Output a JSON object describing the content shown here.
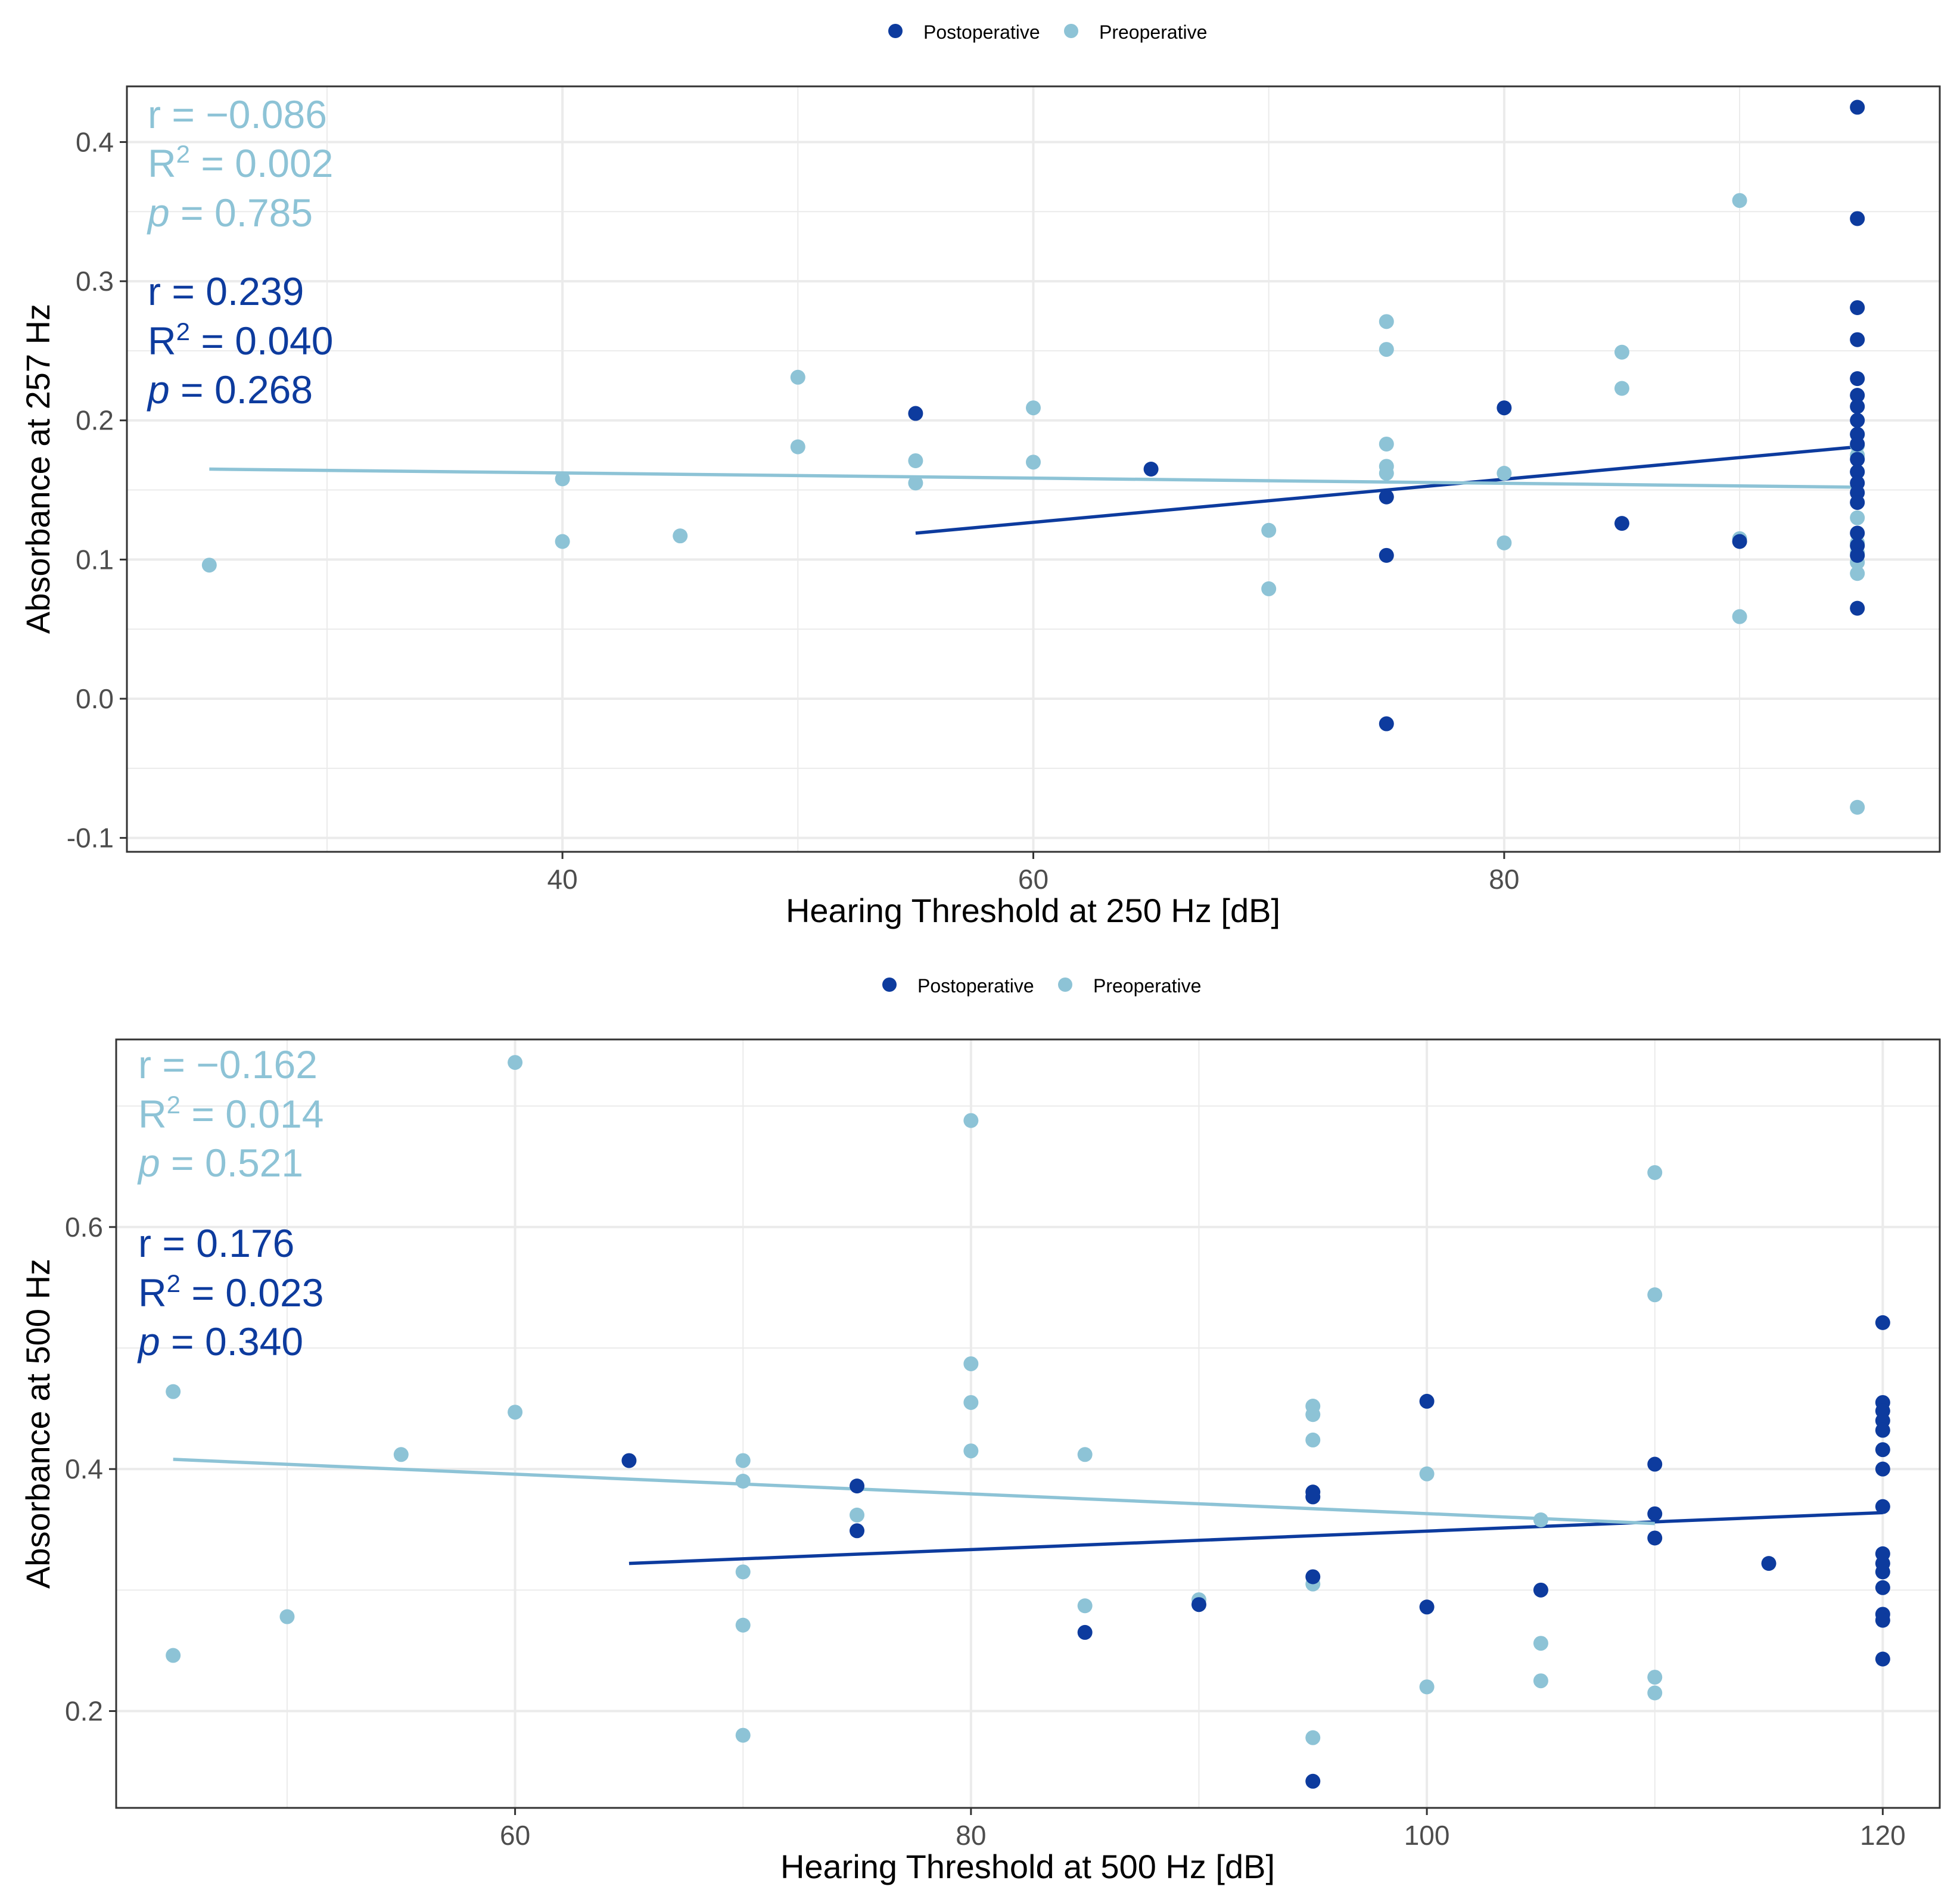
{
  "colors": {
    "postoperative": "#0d3b9e",
    "preoperative": "#8dc3d6",
    "grid": "#ebebeb",
    "panel_border": "#333333"
  },
  "chart_data": [
    {
      "type": "scatter",
      "legend": [
        "Postoperative",
        "Preoperative"
      ],
      "legend_position": "top",
      "xlabel": "Hearing Threshold at 250 Hz [dB]",
      "ylabel": "Absorbance at 257 Hz",
      "xlim": [
        21.5,
        98.5
      ],
      "ylim": [
        -0.11,
        0.44
      ],
      "xticks": [
        40,
        60,
        80
      ],
      "xtick_labels": [
        "40",
        "60",
        "80"
      ],
      "yticks": [
        -0.1,
        0,
        0.1,
        0.2,
        0.3,
        0.4
      ],
      "ytick_labels": [
        "-0.1",
        "0.0",
        "0.1",
        "0.2",
        "0.3",
        "0.4"
      ],
      "stats": {
        "preoperative": {
          "r_label": "r = ",
          "r": "−0.086",
          "r2_label": "R",
          "r2_sup": "2",
          "r2_eq": " = ",
          "r2": "0.002",
          "p_label": "p",
          "p_eq": " = ",
          "p": "0.785"
        },
        "postoperative": {
          "r_label": "r = ",
          "r": "0.239",
          "r2_label": "R",
          "r2_sup": "2",
          "r2_eq": " = ",
          "r2": "0.040",
          "p_label": "p",
          "p_eq": " = ",
          "p": "0.268"
        }
      },
      "series": [
        {
          "name": "Postoperative",
          "points": [
            [
              55,
              0.205
            ],
            [
              65,
              0.165
            ],
            [
              75,
              0.145
            ],
            [
              75,
              0.103
            ],
            [
              75,
              -0.018
            ],
            [
              80,
              0.209
            ],
            [
              85,
              0.126
            ],
            [
              90,
              0.113
            ],
            [
              95,
              0.425
            ],
            [
              95,
              0.345
            ],
            [
              95,
              0.281
            ],
            [
              95,
              0.258
            ],
            [
              95,
              0.23
            ],
            [
              95,
              0.218
            ],
            [
              95,
              0.21
            ],
            [
              95,
              0.2
            ],
            [
              95,
              0.19
            ],
            [
              95,
              0.183
            ],
            [
              95,
              0.172
            ],
            [
              95,
              0.163
            ],
            [
              95,
              0.155
            ],
            [
              95,
              0.148
            ],
            [
              95,
              0.141
            ],
            [
              95,
              0.119
            ],
            [
              95,
              0.11
            ],
            [
              95,
              0.103
            ],
            [
              95,
              0.065
            ]
          ],
          "fit": [
            [
              55,
              0.119
            ],
            [
              95,
              0.181
            ]
          ]
        },
        {
          "name": "Preoperative",
          "points": [
            [
              25,
              0.096
            ],
            [
              40,
              0.158
            ],
            [
              40,
              0.113
            ],
            [
              45,
              0.117
            ],
            [
              50,
              0.231
            ],
            [
              50,
              0.181
            ],
            [
              55,
              0.171
            ],
            [
              55,
              0.155
            ],
            [
              60,
              0.209
            ],
            [
              60,
              0.17
            ],
            [
              70,
              0.121
            ],
            [
              70,
              0.079
            ],
            [
              75,
              0.271
            ],
            [
              75,
              0.251
            ],
            [
              75,
              0.183
            ],
            [
              75,
              0.167
            ],
            [
              75,
              0.162
            ],
            [
              80,
              0.162
            ],
            [
              80,
              0.112
            ],
            [
              85,
              0.249
            ],
            [
              85,
              0.223
            ],
            [
              90,
              0.358
            ],
            [
              90,
              0.115
            ],
            [
              90,
              0.059
            ],
            [
              95,
              0.19
            ],
            [
              95,
              0.182
            ],
            [
              95,
              0.175
            ],
            [
              95,
              0.163
            ],
            [
              95,
              0.13
            ],
            [
              95,
              0.112
            ],
            [
              95,
              0.105
            ],
            [
              95,
              0.098
            ],
            [
              95,
              0.09
            ],
            [
              95,
              -0.078
            ]
          ],
          "fit": [
            [
              25,
              0.165
            ],
            [
              95,
              0.152
            ]
          ]
        }
      ]
    },
    {
      "type": "scatter",
      "legend": [
        "Postoperative",
        "Preoperative"
      ],
      "legend_position": "top",
      "xlabel": "Hearing Threshold at 500 Hz [dB]",
      "ylabel": "Absorbance at 500 Hz",
      "xlim": [
        42.5,
        122.5
      ],
      "ylim": [
        0.12,
        0.755
      ],
      "xticks": [
        60,
        80,
        100,
        120
      ],
      "xtick_labels": [
        "60",
        "80",
        "100",
        "120"
      ],
      "yticks": [
        0.2,
        0.4,
        0.6
      ],
      "ytick_labels": [
        "0.2",
        "0.4",
        "0.6"
      ],
      "stats": {
        "preoperative": {
          "r_label": "r = ",
          "r": "−0.162",
          "r2_label": "R",
          "r2_sup": "2",
          "r2_eq": " = ",
          "r2": "0.014",
          "p_label": "p",
          "p_eq": " = ",
          "p": "0.521"
        },
        "postoperative": {
          "r_label": "r = ",
          "r": "0.176",
          "r2_label": "R",
          "r2_sup": "2",
          "r2_eq": " = ",
          "r2": "0.023",
          "p_label": "p",
          "p_eq": " = ",
          "p": "0.340"
        }
      },
      "series": [
        {
          "name": "Postoperative",
          "points": [
            [
              65,
              0.407
            ],
            [
              75,
              0.386
            ],
            [
              75,
              0.349
            ],
            [
              85,
              0.265
            ],
            [
              90,
              0.288
            ],
            [
              95,
              0.381
            ],
            [
              95,
              0.377
            ],
            [
              95,
              0.311
            ],
            [
              100,
              0.456
            ],
            [
              100,
              0.286
            ],
            [
              105,
              0.3
            ],
            [
              110,
              0.404
            ],
            [
              110,
              0.363
            ],
            [
              110,
              0.343
            ],
            [
              115,
              0.322
            ],
            [
              120,
              0.521
            ],
            [
              120,
              0.455
            ],
            [
              120,
              0.448
            ],
            [
              120,
              0.44
            ],
            [
              120,
              0.432
            ],
            [
              120,
              0.416
            ],
            [
              120,
              0.4
            ],
            [
              120,
              0.369
            ],
            [
              120,
              0.33
            ],
            [
              120,
              0.322
            ],
            [
              120,
              0.315
            ],
            [
              120,
              0.302
            ],
            [
              120,
              0.28
            ],
            [
              120,
              0.275
            ],
            [
              120,
              0.243
            ],
            [
              95,
              0.142
            ]
          ],
          "fit": [
            [
              65,
              0.322
            ],
            [
              120,
              0.364
            ]
          ]
        },
        {
          "name": "Preoperative",
          "points": [
            [
              45,
              0.464
            ],
            [
              45,
              0.246
            ],
            [
              50,
              0.278
            ],
            [
              55,
              0.412
            ],
            [
              60,
              0.736
            ],
            [
              60,
              0.447
            ],
            [
              70,
              0.407
            ],
            [
              70,
              0.39
            ],
            [
              70,
              0.315
            ],
            [
              70,
              0.271
            ],
            [
              70,
              0.18
            ],
            [
              75,
              0.362
            ],
            [
              80,
              0.688
            ],
            [
              80,
              0.487
            ],
            [
              80,
              0.455
            ],
            [
              80,
              0.415
            ],
            [
              85,
              0.412
            ],
            [
              85,
              0.287
            ],
            [
              90,
              0.292
            ],
            [
              95,
              0.452
            ],
            [
              95,
              0.445
            ],
            [
              95,
              0.424
            ],
            [
              95,
              0.305
            ],
            [
              95,
              0.178
            ],
            [
              100,
              0.396
            ],
            [
              100,
              0.22
            ],
            [
              105,
              0.358
            ],
            [
              105,
              0.256
            ],
            [
              105,
              0.225
            ],
            [
              110,
              0.645
            ],
            [
              110,
              0.544
            ],
            [
              110,
              0.228
            ],
            [
              110,
              0.215
            ]
          ],
          "fit": [
            [
              45,
              0.408
            ],
            [
              110,
              0.355
            ]
          ]
        }
      ]
    }
  ]
}
